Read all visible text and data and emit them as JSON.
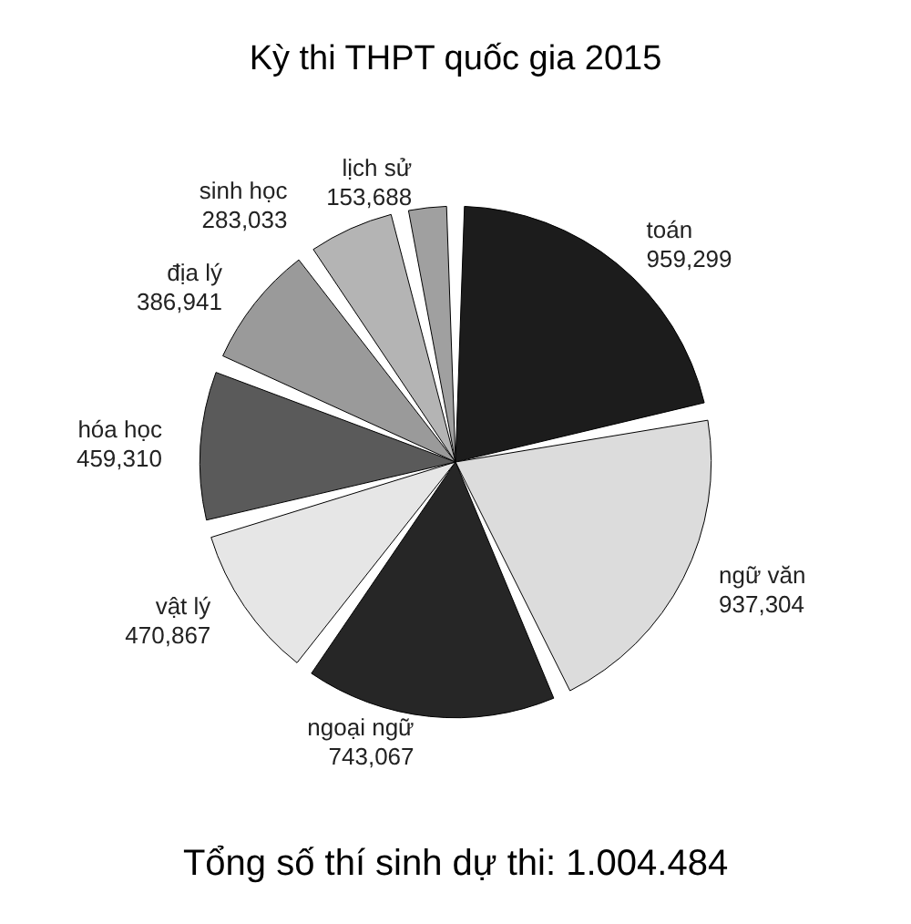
{
  "chart_data": {
    "type": "pie",
    "title": "Kỳ thi THPT quốc gia 2015",
    "categories": [
      "toán",
      "ngữ văn",
      "ngoại ngữ",
      "vật lý",
      "hóa học",
      "địa lý",
      "sinh học",
      "lịch sử"
    ],
    "values": [
      959299,
      937304,
      743067,
      470867,
      459310,
      386941,
      283033,
      153688
    ],
    "colors": [
      "#1c1c1c",
      "#dcdcdc",
      "#262626",
      "#e6e6e6",
      "#5a5a5a",
      "#9a9a9a",
      "#b4b4b4",
      "#a0a0a0"
    ],
    "value_labels": [
      "959,299",
      "937,304",
      "743,067",
      "470,867",
      "459,310",
      "386,941",
      "283,033",
      "153,688"
    ],
    "annotations": [
      "Tổng số thí sinh dự thi: 1.004.484"
    ]
  }
}
